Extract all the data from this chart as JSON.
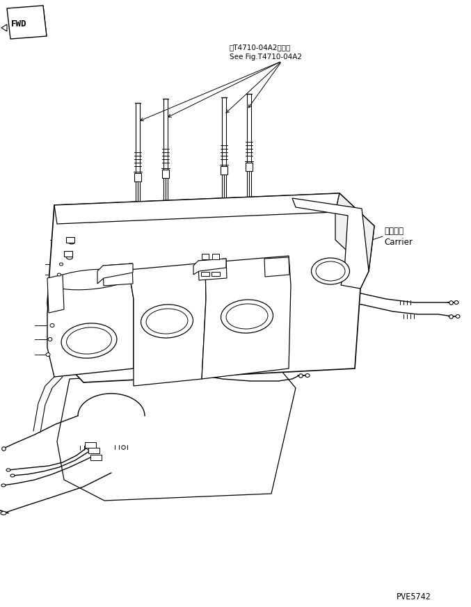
{
  "bg_color": "#ffffff",
  "line_color": "#000000",
  "fig_width": 6.77,
  "fig_height": 8.73,
  "dpi": 100,
  "annotation_text_1": "第T4710-04A2図参照",
  "annotation_text_2": "See Fig.T4710-04A2",
  "carrier_jp": "キャリヤ",
  "carrier_en": "Carrier",
  "part_number": "PVE5742",
  "fwd_label": "FWD"
}
